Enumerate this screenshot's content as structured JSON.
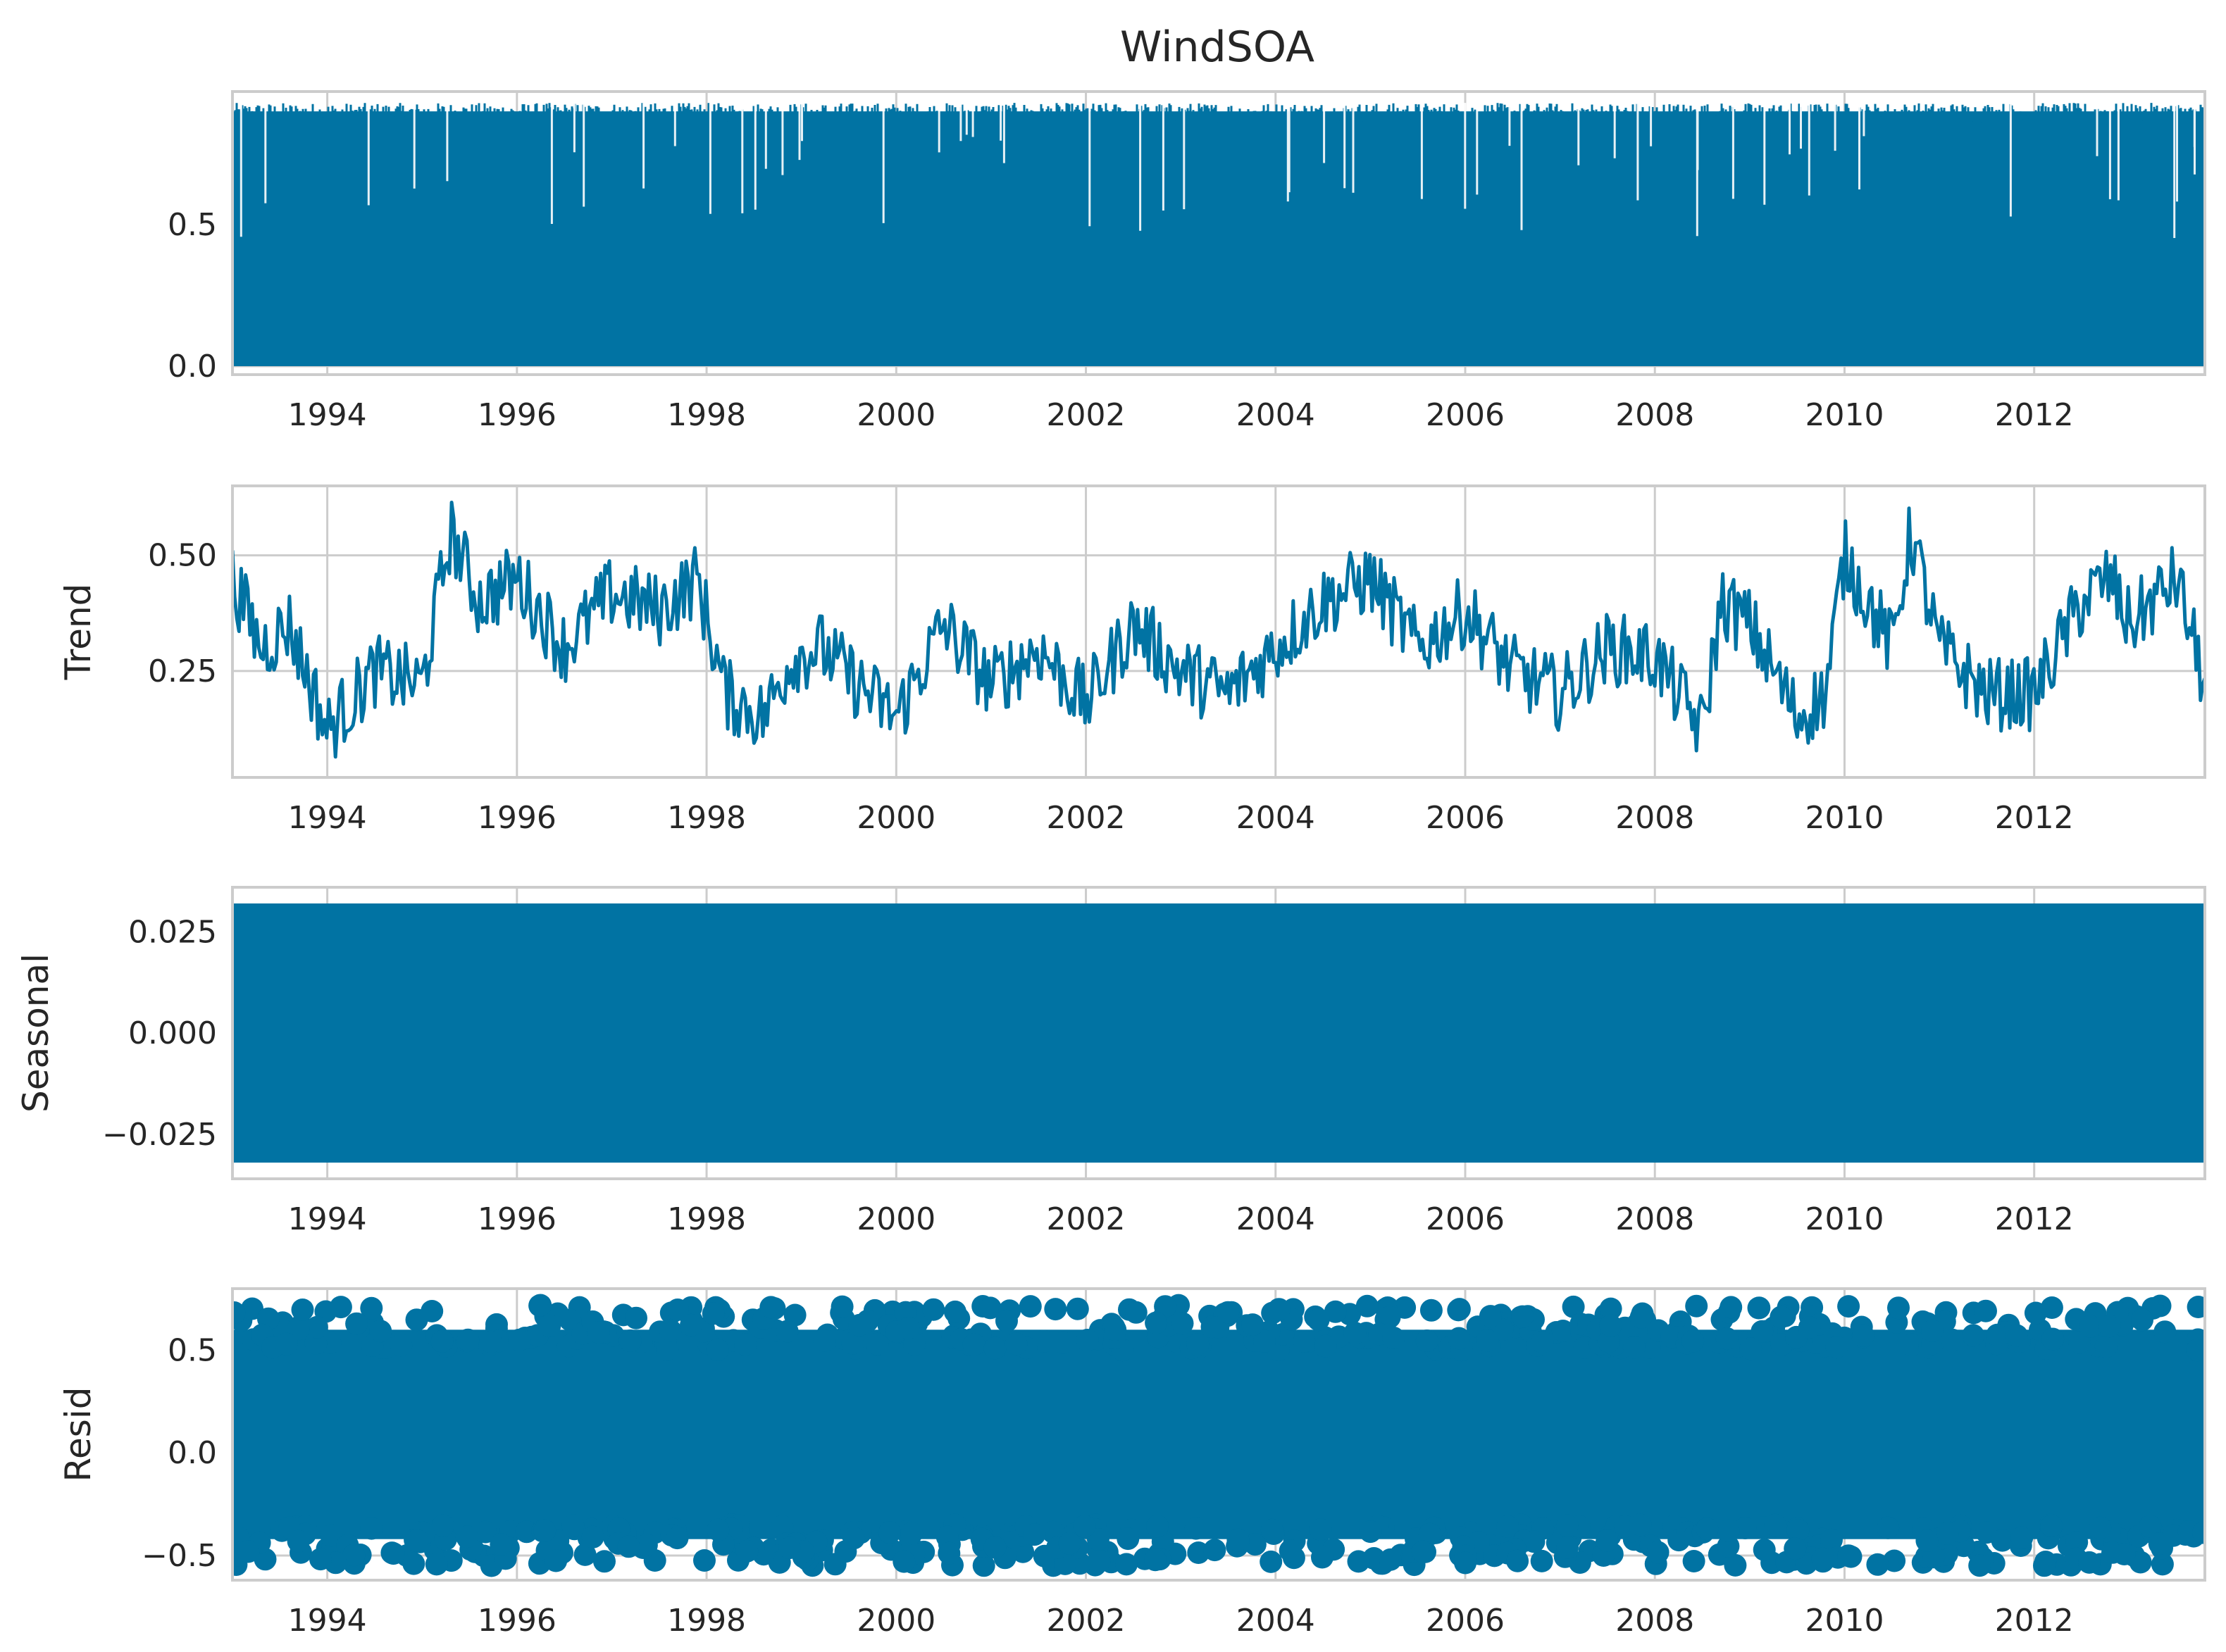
{
  "figure": {
    "title": "WindSOA"
  },
  "colors": {
    "series": "#0173a3",
    "grid": "#cccccc",
    "axes_bg": "#ffffff",
    "text": "#262626"
  },
  "chart_data": [
    {
      "type": "line",
      "panel": "observed",
      "title": "WindSOA",
      "ylabel": "",
      "xlim": [
        1993.0,
        2013.8
      ],
      "ylim": [
        -0.03,
        0.97
      ],
      "xticks": [
        1994,
        1996,
        1998,
        2000,
        2002,
        2004,
        2006,
        2008,
        2010,
        2012
      ],
      "yticks": [
        {
          "v": 0.0,
          "label": "0.0"
        },
        {
          "v": 0.5,
          "label": "0.5"
        }
      ],
      "grid": true,
      "description_values": {
        "min": 0.0,
        "max": 0.93,
        "typical_upper_envelope": 0.9
      }
    },
    {
      "type": "line",
      "panel": "trend",
      "ylabel": "Trend",
      "xlim": [
        1993.0,
        2013.8
      ],
      "ylim": [
        0.02,
        0.65
      ],
      "xticks": [
        1994,
        1996,
        1998,
        2000,
        2002,
        2004,
        2006,
        2008,
        2010,
        2012
      ],
      "yticks": [
        {
          "v": 0.25,
          "label": "0.25"
        },
        {
          "v": 0.5,
          "label": "0.50"
        }
      ],
      "grid": true,
      "x": [
        1993.0,
        1993.3,
        1993.6,
        1994.0,
        1994.5,
        1995.0,
        1995.3,
        1995.6,
        1996.0,
        1996.5,
        1997.0,
        1997.5,
        1997.9,
        1998.2,
        1998.6,
        1998.9,
        1999.2,
        1999.6,
        2000.0,
        2000.5,
        2001.0,
        2001.5,
        2002.0,
        2002.5,
        2003.0,
        2003.5,
        2004.0,
        2004.5,
        2005.0,
        2005.5,
        2006.0,
        2006.5,
        2007.0,
        2007.5,
        2008.0,
        2008.5,
        2008.7,
        2009.0,
        2009.5,
        2009.8,
        2010.0,
        2010.5,
        2010.7,
        2011.0,
        2011.5,
        2012.0,
        2012.5,
        2012.8,
        2013.0,
        2013.5,
        2013.8
      ],
      "values": [
        0.45,
        0.3,
        0.35,
        0.12,
        0.25,
        0.22,
        0.55,
        0.4,
        0.45,
        0.3,
        0.42,
        0.38,
        0.45,
        0.2,
        0.15,
        0.28,
        0.3,
        0.22,
        0.15,
        0.35,
        0.22,
        0.3,
        0.18,
        0.35,
        0.25,
        0.2,
        0.3,
        0.4,
        0.45,
        0.3,
        0.38,
        0.25,
        0.2,
        0.3,
        0.28,
        0.12,
        0.4,
        0.35,
        0.15,
        0.2,
        0.5,
        0.3,
        0.55,
        0.3,
        0.2,
        0.2,
        0.4,
        0.45,
        0.35,
        0.45,
        0.22
      ],
      "range": [
        0.05,
        0.62
      ]
    },
    {
      "type": "line",
      "panel": "seasonal",
      "ylabel": "Seasonal",
      "xlim": [
        1993.0,
        2013.8
      ],
      "ylim": [
        -0.036,
        0.036
      ],
      "xticks": [
        1994,
        1996,
        1998,
        2000,
        2002,
        2004,
        2006,
        2008,
        2010,
        2012
      ],
      "yticks": [
        {
          "v": -0.025,
          "label": "−0.025"
        },
        {
          "v": 0.0,
          "label": "0.000"
        },
        {
          "v": 0.025,
          "label": "0.025"
        }
      ],
      "grid": true,
      "range": [
        -0.032,
        0.032
      ]
    },
    {
      "type": "scatter",
      "panel": "resid",
      "ylabel": "Resid",
      "xlim": [
        1993.0,
        2013.8
      ],
      "ylim": [
        -0.62,
        0.8
      ],
      "xticks": [
        1994,
        1996,
        1998,
        2000,
        2002,
        2004,
        2006,
        2008,
        2010,
        2012
      ],
      "yticks": [
        {
          "v": -0.5,
          "label": "−0.5"
        },
        {
          "v": 0.0,
          "label": "0.0"
        },
        {
          "v": 0.5,
          "label": "0.5"
        }
      ],
      "grid": true,
      "range": [
        -0.58,
        0.75
      ]
    }
  ]
}
